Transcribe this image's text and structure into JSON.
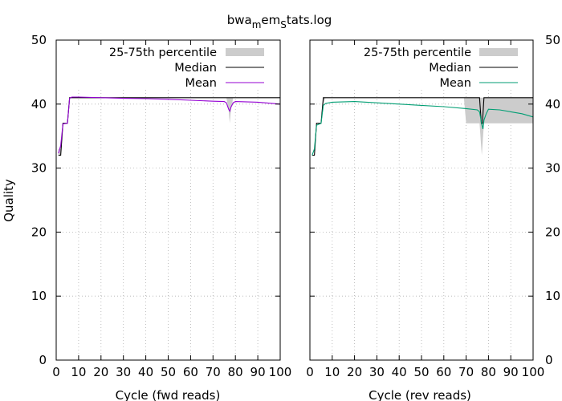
{
  "title": {
    "base": "bwa",
    "sub1": "m",
    "mid": "em",
    "sub2": "S",
    "tail": "tats.log"
  },
  "colors": {
    "band": "#cccccc",
    "median": "#000000",
    "mean_fwd": "#9400d3",
    "mean_rev": "#009e73",
    "grid": "#b0b0b0"
  },
  "chart_data": [
    {
      "type": "line",
      "xlabel": "Cycle (fwd reads)",
      "ylabel": "Quality",
      "xlim": [
        0,
        100
      ],
      "ylim": [
        0,
        50
      ],
      "xticks": [
        0,
        10,
        20,
        30,
        40,
        50,
        60,
        70,
        80,
        90,
        100
      ],
      "yticks": [
        0,
        10,
        20,
        30,
        40,
        50
      ],
      "grid": true,
      "legend_position": "top-right",
      "legend": [
        "25-75th percentile",
        "Median",
        "Mean"
      ],
      "percentile_band": {
        "x": [
          1,
          2,
          3,
          5,
          6,
          7,
          76,
          77,
          77.5,
          78,
          79,
          100
        ],
        "lower": [
          32,
          32,
          37,
          37,
          41,
          41,
          41,
          39,
          37,
          39,
          41,
          41
        ],
        "upper": [
          33,
          33,
          37,
          37,
          41,
          41,
          41,
          41,
          41,
          41,
          41,
          41
        ]
      },
      "series": [
        {
          "name": "Median",
          "x": [
            1,
            2,
            2,
            3,
            3,
            5,
            5,
            6,
            6,
            100
          ],
          "y": [
            32,
            32,
            32,
            37,
            37,
            37,
            37,
            41,
            41,
            41
          ]
        },
        {
          "name": "Mean",
          "x": [
            1,
            2,
            3,
            5,
            6,
            7,
            8,
            10,
            20,
            30,
            40,
            50,
            60,
            70,
            75,
            76,
            77,
            77.5,
            78,
            79,
            80,
            90,
            100
          ],
          "y": [
            32.3,
            33.5,
            36.9,
            37,
            40.9,
            41.1,
            41.1,
            41.1,
            41,
            40.9,
            40.85,
            40.75,
            40.6,
            40.45,
            40.4,
            40.2,
            39.2,
            38.9,
            39.5,
            40.2,
            40.4,
            40.3,
            40.0
          ]
        }
      ]
    },
    {
      "type": "line",
      "xlabel": "Cycle (rev reads)",
      "ylabel": "",
      "xlim": [
        0,
        100
      ],
      "ylim": [
        0,
        50
      ],
      "xticks": [
        0,
        10,
        20,
        30,
        40,
        50,
        60,
        70,
        80,
        90,
        100
      ],
      "yticks": [
        0,
        10,
        20,
        30,
        40,
        50
      ],
      "grid": true,
      "legend_position": "top-right",
      "legend": [
        "25-75th percentile",
        "Median",
        "Mean"
      ],
      "percentile_band": {
        "x": [
          1,
          2,
          3,
          5,
          6,
          7,
          69,
          70,
          76,
          77,
          78,
          100
        ],
        "lower": [
          32,
          32,
          37,
          37,
          40,
          41,
          41,
          37,
          37,
          32,
          37,
          37
        ],
        "upper": [
          32,
          32,
          37,
          37,
          41,
          41,
          41,
          41,
          41,
          41,
          41,
          41
        ]
      },
      "series": [
        {
          "name": "Median",
          "x": [
            1,
            2,
            2,
            3,
            3,
            5,
            5,
            6,
            6,
            76,
            76.8,
            77.3,
            78,
            100
          ],
          "y": [
            32,
            32,
            32,
            37,
            37,
            37,
            37,
            41,
            41,
            41,
            37,
            37,
            41,
            41
          ]
        },
        {
          "name": "Mean",
          "x": [
            1,
            2,
            3,
            5,
            6,
            7,
            10,
            20,
            30,
            40,
            50,
            60,
            70,
            75,
            76,
            77,
            77.5,
            78,
            79,
            80,
            85,
            90,
            95,
            100
          ],
          "y": [
            32,
            33,
            36.7,
            37,
            39.8,
            40.1,
            40.3,
            40.4,
            40.2,
            40,
            39.8,
            39.6,
            39.3,
            39.1,
            38.8,
            36.8,
            36.1,
            37.5,
            38.5,
            39.2,
            39.1,
            38.8,
            38.5,
            38.0
          ]
        }
      ]
    }
  ]
}
